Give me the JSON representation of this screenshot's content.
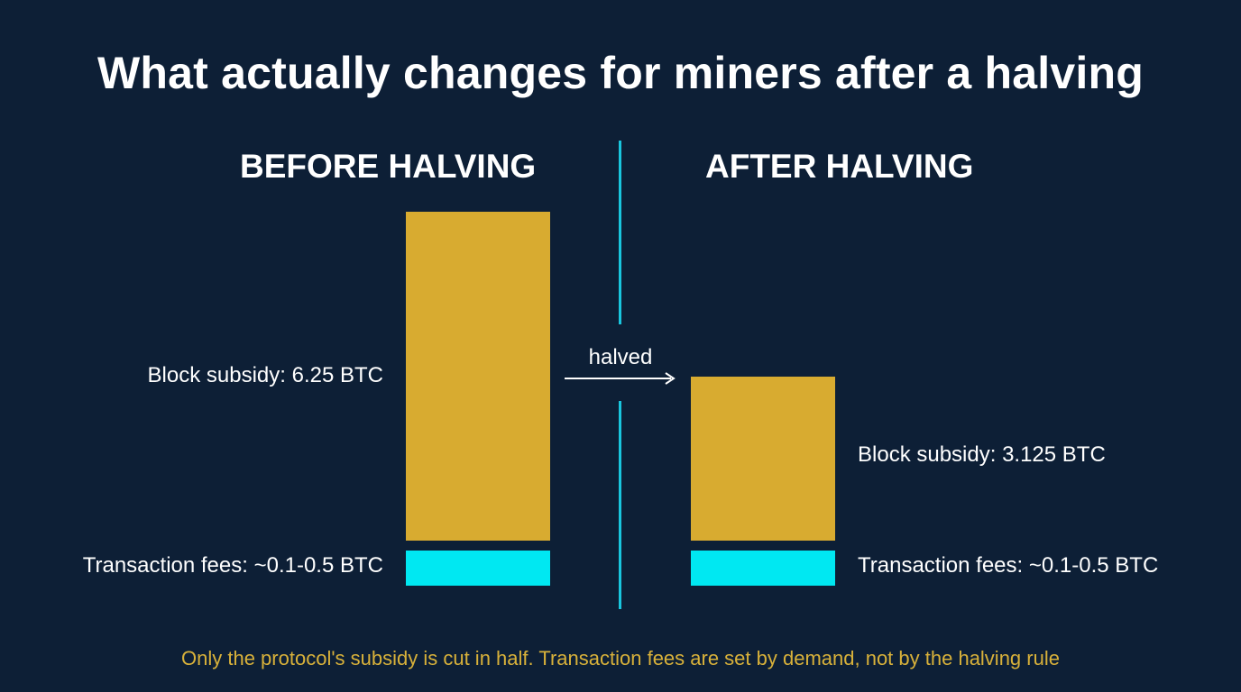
{
  "title": "What actually changes for miners after a halving",
  "footer": "Only the protocol's subsidy is cut in half. Transaction fees are set by demand, not by the halving rule",
  "arrow_label": "halved",
  "colors": {
    "background": "#0d1f36",
    "subsidy": "#d8ab30",
    "fees": "#00e8f2",
    "divider": "#19c6de",
    "footer": "#d8b13a"
  },
  "chart_data": {
    "type": "bar",
    "categories": [
      "BEFORE HALVING",
      "AFTER HALVING"
    ],
    "series": [
      {
        "name": "Block subsidy",
        "values": [
          6.25,
          3.125
        ],
        "labels": [
          "Block subsidy: 6.25 BTC",
          "Block subsidy: 3.125 BTC"
        ]
      },
      {
        "name": "Transaction fees",
        "values": [
          0.5,
          0.5
        ],
        "labels": [
          "Transaction fees: ~0.1-0.5 BTC",
          "Transaction fees: ~0.1-0.5 BTC"
        ]
      }
    ],
    "title": "What actually changes for miners after a halving",
    "annotation": "halved",
    "grid": false,
    "legend": "none"
  }
}
